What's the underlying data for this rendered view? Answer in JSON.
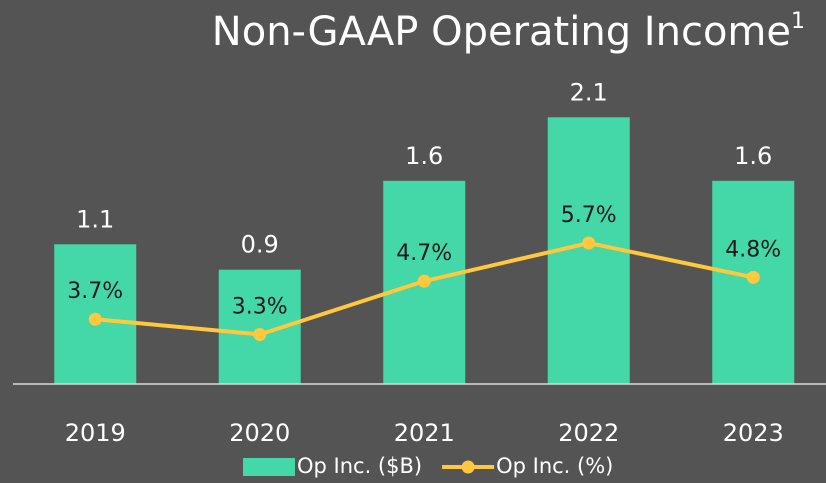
{
  "chart_data": {
    "type": "bar_line",
    "title": "Non-GAAP Operating Income",
    "title_superscript": "1",
    "categories": [
      "2019",
      "2020",
      "2021",
      "2022",
      "2023"
    ],
    "ylim": [
      0,
      3
    ],
    "y2lim": [
      2,
      12
    ],
    "series": [
      {
        "name": "Op Inc. ($B)",
        "type": "bar",
        "color": "#44d7a8",
        "values": [
          1.1,
          0.9,
          1.6,
          2.1,
          1.6
        ]
      },
      {
        "name": "Op Inc. (%)",
        "type": "line",
        "axis": "y2",
        "color": "#ffc83d",
        "values": [
          3.7,
          3.3,
          4.7,
          5.7,
          4.8
        ],
        "value_labels": [
          "3.7%",
          "3.3%",
          "4.7%",
          "5.7%",
          "4.8%"
        ]
      }
    ],
    "legend": "bottom"
  }
}
